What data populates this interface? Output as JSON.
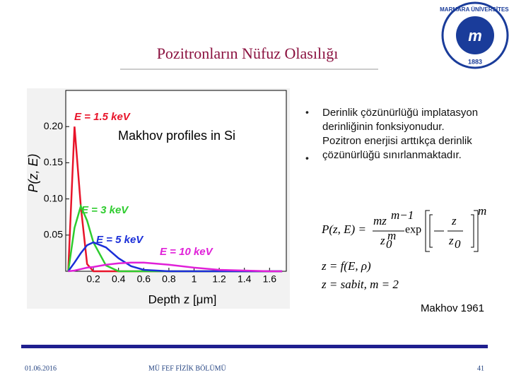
{
  "slide_title": "Pozitronların Nüfuz Olasılığı",
  "logo": {
    "text": "MARMARA ÜNİVERSİTESİ",
    "year": "1883"
  },
  "chart_data": {
    "type": "line",
    "title": "Makhov profiles in Si",
    "x_label": "Depth z [μm]",
    "y_label": "P(z, E)",
    "x": [
      0,
      0.05,
      0.1,
      0.15,
      0.2,
      0.3,
      0.4,
      0.5,
      0.6,
      0.8,
      1.0,
      1.2,
      1.4,
      1.6,
      1.7
    ],
    "series": [
      {
        "name": "E = 1.5 keV",
        "color": "#e8142a",
        "values": [
          0,
          0.2,
          0.09,
          0.01,
          0,
          0,
          0,
          0,
          0,
          0,
          0,
          0,
          0,
          0,
          0
        ]
      },
      {
        "name": "E = 3 keV",
        "color": "#2ecc2e",
        "values": [
          0,
          0.06,
          0.09,
          0.07,
          0.04,
          0.008,
          0,
          0,
          0,
          0,
          0,
          0,
          0,
          0,
          0
        ]
      },
      {
        "name": "E = 5 keV",
        "color": "#1a2ed8",
        "values": [
          0,
          0.012,
          0.025,
          0.036,
          0.04,
          0.033,
          0.018,
          0.007,
          0.002,
          0,
          0,
          0,
          0,
          0,
          0
        ]
      },
      {
        "name": "E = 10 keV",
        "color": "#e020d8",
        "values": [
          0,
          0.001,
          0.003,
          0.005,
          0.006,
          0.009,
          0.011,
          0.012,
          0.012,
          0.009,
          0.005,
          0.002,
          0.001,
          0,
          0
        ]
      }
    ],
    "xlim": [
      0,
      1.75
    ],
    "ylim": [
      0,
      0.25
    ],
    "xticks": [
      0.2,
      0.4,
      0.6,
      0.8,
      1.0,
      1.2,
      1.4,
      1.6
    ],
    "yticks": [
      0.05,
      {
        "value": 0.1,
        "label": "0.10"
      },
      0.15,
      {
        "value": 0.2,
        "label": "0.20"
      }
    ]
  },
  "bullets": [
    "Derinlik çözünürlüğü implatasyon derinliğinin fonksiyonudur.",
    "Pozitron enerjisi arttıkça derinlik çözünürlüğü sınırlanmaktadır."
  ],
  "formula": {
    "lhs": "P(z, E) =",
    "num": "mz",
    "num_exp": "m−1",
    "den": "z",
    "den_sub": "0",
    "den_exp": "m",
    "exp": "exp",
    "inner_num": "z",
    "inner_den": "z",
    "inner_sub": "0",
    "outer_exp": "m",
    "line2": "z = f(E, ρ)",
    "line3": "z = sabit,   m = 2"
  },
  "reference": "Makhov 1961",
  "footer": {
    "date": "01.06.2016",
    "dept": "MÜ FEF FİZİK BÖLÜMÜ",
    "page": "41"
  }
}
